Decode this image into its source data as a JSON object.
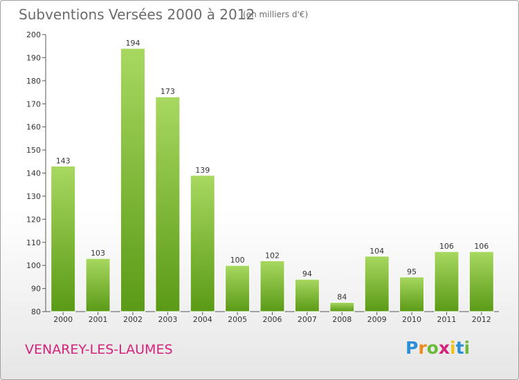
{
  "title": "Subventions Versées 2000 à 2012",
  "subtitle": "(en milliers d'€)",
  "town": "VENAREY-LES-LAUMES",
  "logo": {
    "letters": [
      "P",
      "r",
      "o",
      "x",
      "i",
      "t",
      "i"
    ],
    "colors": [
      "#2a8fd6",
      "#f08a1c",
      "#6cba3a",
      "#d4237a",
      "#f0c11c",
      "#2a8fd6",
      "#6cba3a"
    ]
  },
  "colors": {
    "bar_light": "#a8d860",
    "bar_dark": "#5a9a16",
    "axis": "#555555",
    "grid": "#dddddd"
  },
  "chart_data": {
    "type": "bar",
    "title": "Subventions Versées 2000 à 2012",
    "subtitle": "(en milliers d'€)",
    "categories": [
      "2000",
      "2001",
      "2002",
      "2003",
      "2004",
      "2005",
      "2006",
      "2007",
      "2008",
      "2009",
      "2010",
      "2011",
      "2012"
    ],
    "values": [
      143,
      103,
      194,
      173,
      139,
      100,
      102,
      94,
      84,
      104,
      95,
      106,
      106
    ],
    "ylim": [
      80,
      200
    ],
    "yticks": [
      80,
      90,
      100,
      110,
      120,
      130,
      140,
      150,
      160,
      170,
      180,
      190,
      200
    ],
    "xlabel": "",
    "ylabel": "",
    "grid": false,
    "data_labels": true
  }
}
